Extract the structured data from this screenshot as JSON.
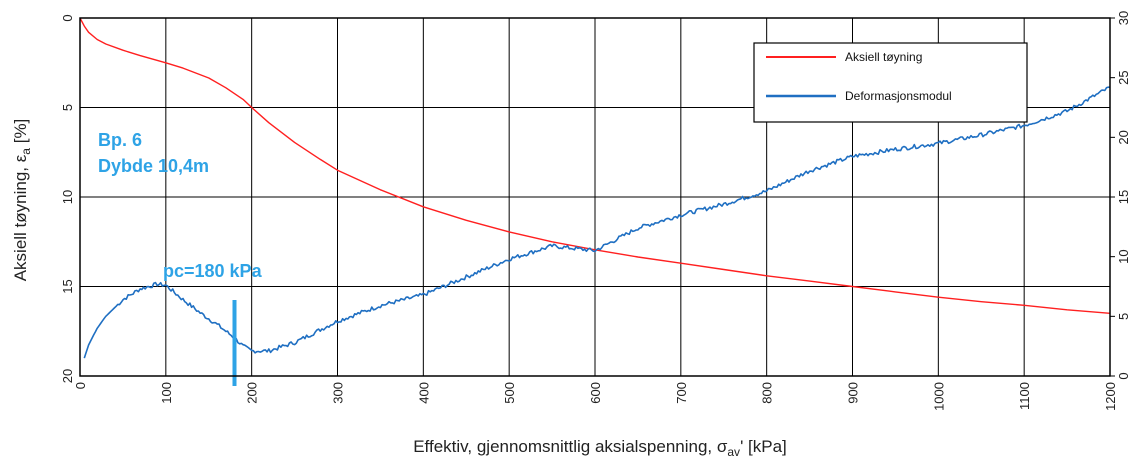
{
  "chart_data": {
    "type": "line",
    "title": "",
    "xlabel": {
      "main": "Effektiv, gjennomsnittlig aksialspenning, σ",
      "sub": "av",
      "suffix": "'  [kPa]"
    },
    "ylabel_left": {
      "main": "Aksiell tøyning, ε",
      "sub": "a",
      "suffix": "  [%]"
    },
    "xlim": [
      0,
      1200
    ],
    "ylim_left": [
      20,
      0
    ],
    "ylim_right": [
      0,
      30
    ],
    "x_ticks": [
      "0",
      "100",
      "200",
      "300",
      "400",
      "500",
      "600",
      "700",
      "800",
      "900",
      "1000",
      "1100",
      "1200"
    ],
    "y_left_ticks": [
      "0",
      "5",
      "10",
      "15",
      "20"
    ],
    "y_right_ticks": [
      "0",
      "5",
      "10",
      "15",
      "20",
      "25",
      "30"
    ],
    "grid": true,
    "legend_position": "top-right",
    "series": [
      {
        "name": "Aksiell tøyning",
        "axis": "left",
        "color": "#ff2020",
        "x": [
          0,
          5,
          10,
          20,
          30,
          50,
          70,
          100,
          120,
          150,
          170,
          190,
          200,
          220,
          250,
          280,
          300,
          350,
          400,
          450,
          500,
          550,
          600,
          650,
          700,
          750,
          800,
          850,
          900,
          950,
          1000,
          1050,
          1100,
          1150,
          1200
        ],
        "y": [
          0,
          0.45,
          0.8,
          1.2,
          1.45,
          1.8,
          2.1,
          2.5,
          2.8,
          3.35,
          3.9,
          4.55,
          5.0,
          5.85,
          6.95,
          7.9,
          8.5,
          9.6,
          10.55,
          11.3,
          11.95,
          12.5,
          12.95,
          13.35,
          13.7,
          14.05,
          14.4,
          14.7,
          15.0,
          15.3,
          15.6,
          15.85,
          16.05,
          16.3,
          16.5
        ]
      },
      {
        "name": "Deformasjonsmodul",
        "axis": "right",
        "color": "#1f6fc2",
        "x": [
          5,
          10,
          20,
          30,
          50,
          70,
          90,
          100,
          110,
          120,
          140,
          160,
          180,
          190,
          200,
          220,
          250,
          300,
          350,
          400,
          450,
          500,
          550,
          600,
          650,
          700,
          750,
          800,
          850,
          900,
          950,
          1000,
          1050,
          1100,
          1150,
          1200
        ],
        "y": [
          1.5,
          2.6,
          4.0,
          5.0,
          6.4,
          7.3,
          7.7,
          7.6,
          7.0,
          6.4,
          5.3,
          4.3,
          3.2,
          2.5,
          2.1,
          2.1,
          2.8,
          4.6,
          5.9,
          6.8,
          8.3,
          9.8,
          10.9,
          10.5,
          12.4,
          13.5,
          14.4,
          15.5,
          17.2,
          18.4,
          19.0,
          19.5,
          20.2,
          21.0,
          22.2,
          24.2
        ]
      }
    ],
    "annotations": {
      "borehole": "Bp. 6",
      "depth": "Dybde 10,4m",
      "pc_label": "pc=180 kPa",
      "pc_value": 180
    }
  },
  "colors": {
    "annotation": "#2ea3e6",
    "pc_marker": "#2ea3e6"
  }
}
